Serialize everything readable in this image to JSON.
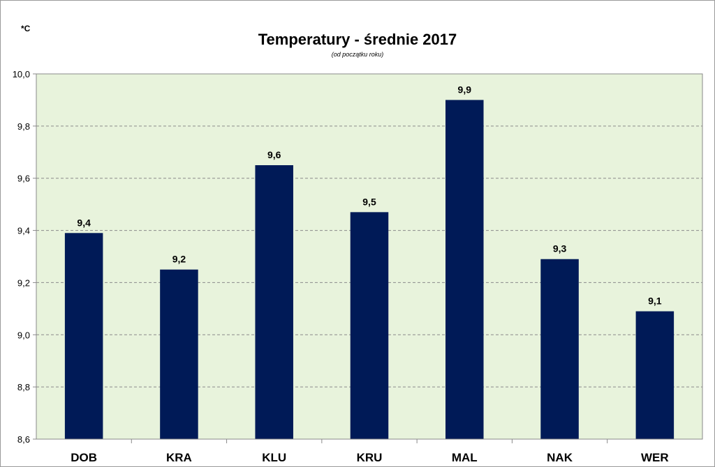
{
  "chart_data": {
    "type": "bar",
    "title": "Temperatury - średnie 2017",
    "subtitle": "(od początku roku)",
    "unit_label": "*C",
    "categories": [
      "DOB",
      "KRA",
      "KLU",
      "KRU",
      "MAL",
      "NAK",
      "WER"
    ],
    "values": [
      9.39,
      9.25,
      9.65,
      9.47,
      9.9,
      9.29,
      9.09
    ],
    "data_labels": [
      "9,4",
      "9,2",
      "9,6",
      "9,5",
      "9,9",
      "9,3",
      "9,1"
    ],
    "y_ticks": [
      "8,6",
      "8,8",
      "9,0",
      "9,2",
      "9,4",
      "9,6",
      "9,8",
      "10,0"
    ],
    "ylim": [
      8.6,
      10.0
    ],
    "y_step": 0.2,
    "grid": true,
    "legend": "none",
    "colors": {
      "bar": "#001a57",
      "plot_background": "#e8f3dc",
      "gridline": "#8a8a8a",
      "axis": "#8a8a8a"
    }
  }
}
